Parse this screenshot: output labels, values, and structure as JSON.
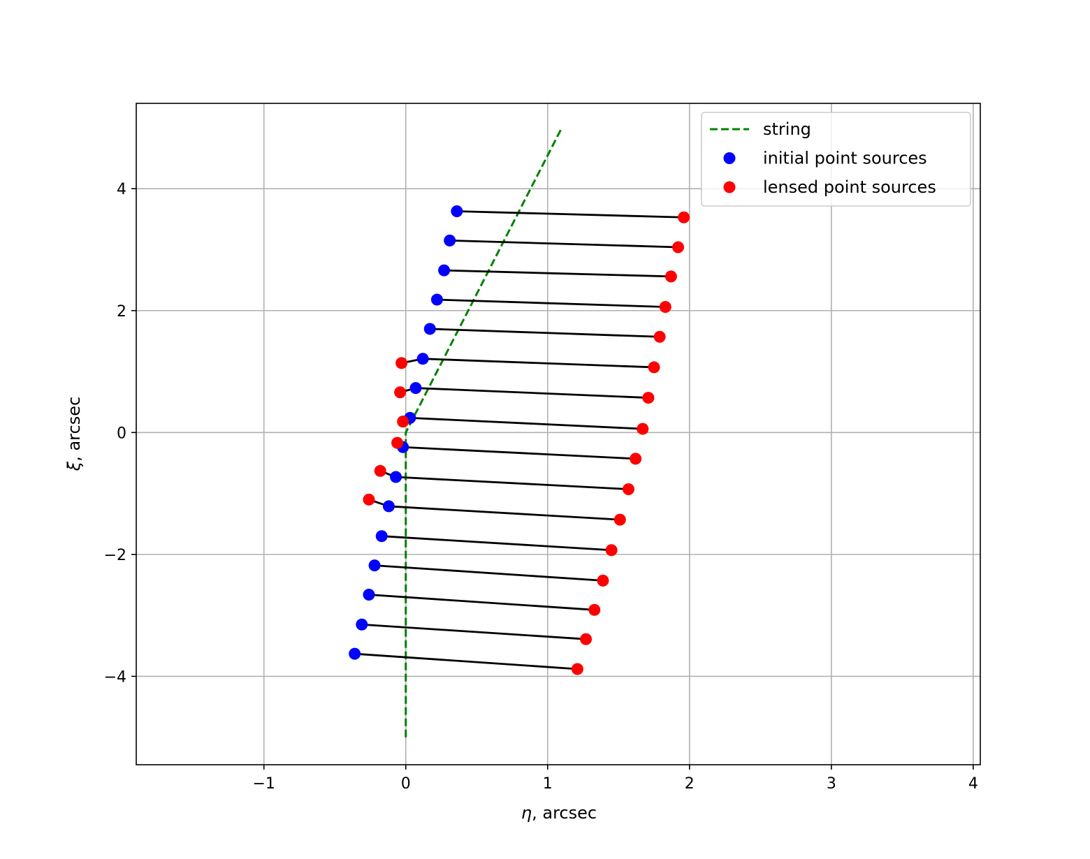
{
  "chart_data": {
    "type": "scatter",
    "xlabel_symbol": "η",
    "xlabel_text": ", arcsec",
    "ylabel_symbol": "ξ",
    "ylabel_text": ", arcsec",
    "xlim": [
      -1.9,
      4.05
    ],
    "ylim": [
      -5.45,
      5.4
    ],
    "xticks": [
      -1,
      0,
      1,
      2,
      3,
      4
    ],
    "yticks": [
      -4,
      -2,
      0,
      2,
      4
    ],
    "xtick_labels": [
      "−1",
      "0",
      "1",
      "2",
      "3",
      "4"
    ],
    "ytick_labels": [
      "−4",
      "−2",
      "0",
      "2",
      "4"
    ],
    "grid": true,
    "legend_position": "top-right",
    "legend": [
      {
        "label": "string",
        "kind": "dashed-line",
        "color": "#008000"
      },
      {
        "label": "initial point sources",
        "kind": "marker",
        "color": "#0000ff"
      },
      {
        "label": "lensed point sources",
        "kind": "marker",
        "color": "#ff0000"
      }
    ],
    "string_line": {
      "name": "string",
      "color": "#008000",
      "points": [
        [
          0,
          -5.0
        ],
        [
          0,
          0
        ],
        [
          1.1,
          5.0
        ]
      ]
    },
    "initial_point_sources": {
      "color": "#0000ff",
      "x": [
        0.36,
        0.31,
        0.27,
        0.22,
        0.17,
        0.12,
        0.07,
        0.03,
        -0.02,
        -0.07,
        -0.12,
        -0.17,
        -0.22,
        -0.26,
        -0.31,
        -0.36
      ],
      "y": [
        3.63,
        3.15,
        2.66,
        2.18,
        1.7,
        1.21,
        0.73,
        0.24,
        -0.24,
        -0.73,
        -1.21,
        -1.7,
        -2.18,
        -2.66,
        -3.15,
        -3.63
      ]
    },
    "lensed_point_sources": {
      "color": "#ff0000",
      "primary": {
        "x": [
          1.96,
          1.92,
          1.87,
          1.83,
          1.79,
          1.75,
          1.71,
          1.67,
          1.62,
          1.57,
          1.51,
          1.45,
          1.39,
          1.33,
          1.27,
          1.21
        ],
        "y": [
          3.53,
          3.04,
          2.56,
          2.06,
          1.57,
          1.07,
          0.57,
          0.06,
          -0.43,
          -0.93,
          -1.43,
          -1.93,
          -2.43,
          -2.91,
          -3.39,
          -3.88
        ]
      },
      "secondary": {
        "x": [
          -0.03,
          -0.04,
          -0.02,
          -0.06,
          -0.18,
          -0.26
        ],
        "y": [
          1.14,
          0.66,
          0.18,
          -0.17,
          -0.63,
          -1.1
        ]
      }
    },
    "connectors": {
      "color": "#000000",
      "primary_pairs": "each initial point to the lensed primary point at the same index",
      "secondary_pairs_start_index": 5
    }
  }
}
